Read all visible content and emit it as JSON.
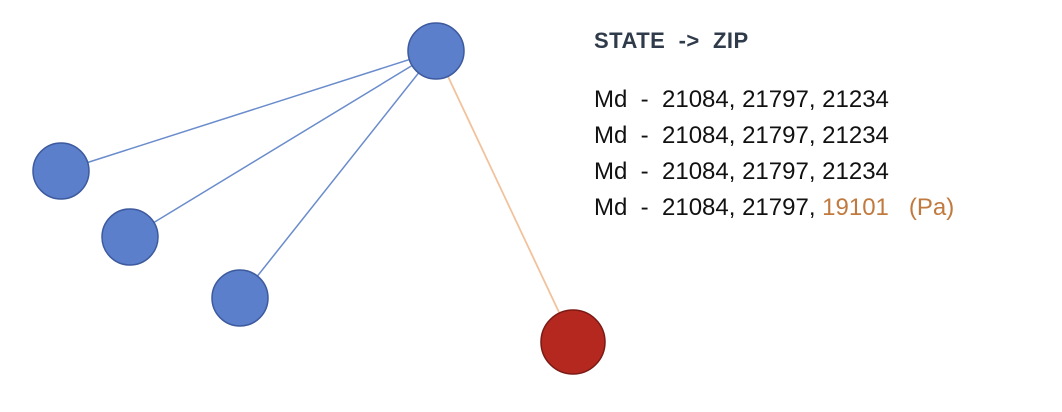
{
  "legend": {
    "title": "STATE  ->  ZIP",
    "lines": [
      {
        "prefix": "Md  -  21084, 21797, 21234",
        "highlight": "",
        "suffix": ""
      },
      {
        "prefix": "Md  -  21084, 21797, 21234",
        "highlight": "",
        "suffix": ""
      },
      {
        "prefix": "Md  -  21084, 21797, 21234",
        "highlight": "",
        "suffix": ""
      },
      {
        "prefix": "Md  -  21084, 21797, ",
        "highlight": "19101",
        "suffix": "   (Pa)"
      }
    ]
  },
  "colors": {
    "node_blue": "#5b7fcb",
    "node_blue_stroke": "#3d5a9e",
    "node_red": "#b5281f",
    "node_red_stroke": "#7a1a14",
    "edge_blue": "#6a8ccc",
    "edge_orange": "#f2c29c",
    "highlight_text": "#c07a3f"
  }
}
